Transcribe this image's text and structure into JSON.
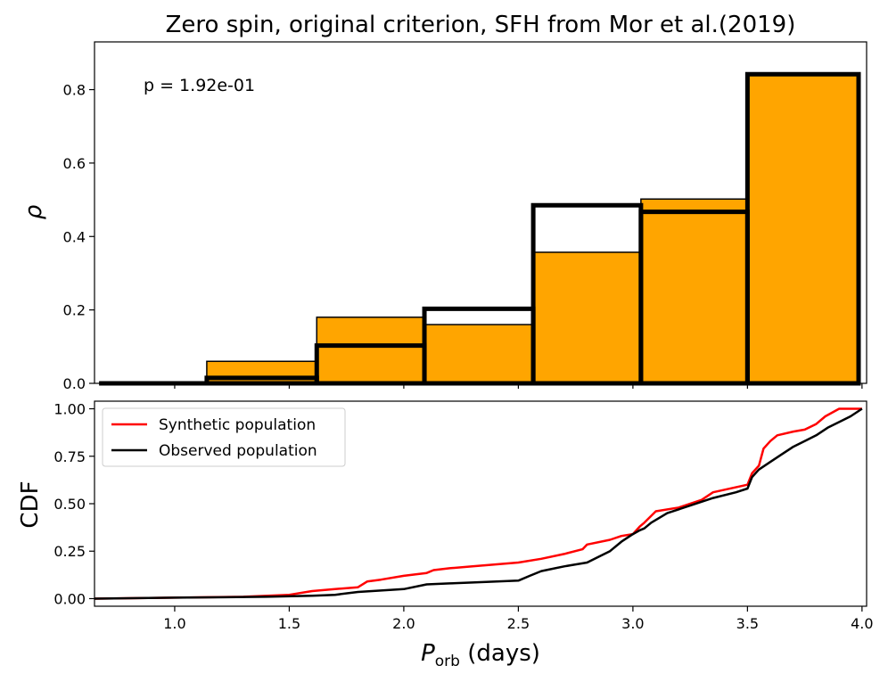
{
  "chart_data": [
    {
      "type": "bar",
      "title": "Zero spin, original criterion, SFH from Mor et al.(2019)",
      "ylabel": "ρ",
      "xlim": [
        0.65,
        4.02
      ],
      "ylim": [
        0,
        0.93
      ],
      "yticks": [
        0.0,
        0.2,
        0.4,
        0.6,
        0.8
      ],
      "ytick_labels": [
        "0.0",
        "0.2",
        "0.4",
        "0.6",
        "0.8"
      ],
      "annotation": "p = 1.92e-01",
      "series": [
        {
          "name": "Synthetic population",
          "style": "filled",
          "color": "#ffa500",
          "bins": [
            {
              "x0": 1.14,
              "x1": 1.62,
              "value": 0.06
            },
            {
              "x0": 1.62,
              "x1": 2.09,
              "value": 0.18
            },
            {
              "x0": 2.09,
              "x1": 2.565,
              "value": 0.16
            },
            {
              "x0": 2.565,
              "x1": 3.035,
              "value": 0.357
            },
            {
              "x0": 3.035,
              "x1": 3.5,
              "value": 0.502
            },
            {
              "x0": 3.5,
              "x1": 3.985,
              "value": 0.842
            }
          ]
        },
        {
          "name": "Observed population",
          "style": "step",
          "color": "#000000",
          "bins": [
            {
              "x0": 0.67,
              "x1": 1.14,
              "value": 0.0
            },
            {
              "x0": 1.14,
              "x1": 1.62,
              "value": 0.015
            },
            {
              "x0": 1.62,
              "x1": 2.09,
              "value": 0.103
            },
            {
              "x0": 2.09,
              "x1": 2.565,
              "value": 0.203
            },
            {
              "x0": 2.565,
              "x1": 3.035,
              "value": 0.485
            },
            {
              "x0": 3.035,
              "x1": 3.5,
              "value": 0.467
            },
            {
              "x0": 3.5,
              "x1": 3.985,
              "value": 0.842
            }
          ]
        }
      ]
    },
    {
      "type": "line",
      "xlabel": "P_orb (days)",
      "xlabel_main": "P",
      "xlabel_sub": "orb",
      "xlabel_rest": " (days)",
      "ylabel": "CDF",
      "xlim": [
        0.65,
        4.02
      ],
      "ylim": [
        -0.04,
        1.04
      ],
      "xticks": [
        1.0,
        1.5,
        2.0,
        2.5,
        3.0,
        3.5,
        4.0
      ],
      "xtick_labels": [
        "1.0",
        "1.5",
        "2.0",
        "2.5",
        "3.0",
        "3.5",
        "4.0"
      ],
      "yticks": [
        0.0,
        0.25,
        0.5,
        0.75,
        1.0
      ],
      "ytick_labels": [
        "0.00",
        "0.25",
        "0.50",
        "0.75",
        "1.00"
      ],
      "legend_position": "top-left",
      "series": [
        {
          "name": "Synthetic population",
          "color": "#ff0000",
          "x": [
            0.65,
            1.0,
            1.3,
            1.5,
            1.6,
            1.7,
            1.8,
            1.84,
            1.9,
            2.0,
            2.1,
            2.13,
            2.2,
            2.3,
            2.4,
            2.5,
            2.6,
            2.7,
            2.78,
            2.8,
            2.9,
            2.95,
            3.0,
            3.03,
            3.05,
            3.1,
            3.2,
            3.3,
            3.35,
            3.5,
            3.52,
            3.55,
            3.57,
            3.6,
            3.63,
            3.7,
            3.75,
            3.8,
            3.84,
            3.9,
            3.95,
            4.0
          ],
          "y": [
            0.0,
            0.005,
            0.01,
            0.02,
            0.04,
            0.05,
            0.06,
            0.09,
            0.1,
            0.12,
            0.135,
            0.15,
            0.16,
            0.17,
            0.18,
            0.19,
            0.21,
            0.235,
            0.26,
            0.285,
            0.31,
            0.33,
            0.34,
            0.38,
            0.4,
            0.46,
            0.48,
            0.52,
            0.56,
            0.6,
            0.66,
            0.7,
            0.79,
            0.83,
            0.86,
            0.88,
            0.89,
            0.92,
            0.96,
            1.0,
            1.0,
            1.0
          ]
        },
        {
          "name": "Observed population",
          "color": "#000000",
          "x": [
            0.65,
            1.0,
            1.4,
            1.6,
            1.7,
            1.8,
            2.0,
            2.1,
            2.2,
            2.3,
            2.5,
            2.55,
            2.6,
            2.7,
            2.8,
            2.85,
            2.9,
            2.95,
            3.0,
            3.03,
            3.05,
            3.08,
            3.15,
            3.25,
            3.35,
            3.45,
            3.5,
            3.52,
            3.55,
            3.6,
            3.65,
            3.7,
            3.75,
            3.8,
            3.85,
            3.9,
            3.95,
            4.0
          ],
          "y": [
            0.0,
            0.005,
            0.01,
            0.015,
            0.02,
            0.035,
            0.05,
            0.075,
            0.08,
            0.085,
            0.095,
            0.12,
            0.145,
            0.17,
            0.19,
            0.22,
            0.25,
            0.3,
            0.34,
            0.36,
            0.37,
            0.4,
            0.45,
            0.49,
            0.53,
            0.56,
            0.58,
            0.64,
            0.68,
            0.72,
            0.76,
            0.8,
            0.83,
            0.86,
            0.9,
            0.93,
            0.96,
            1.0
          ]
        }
      ]
    }
  ]
}
